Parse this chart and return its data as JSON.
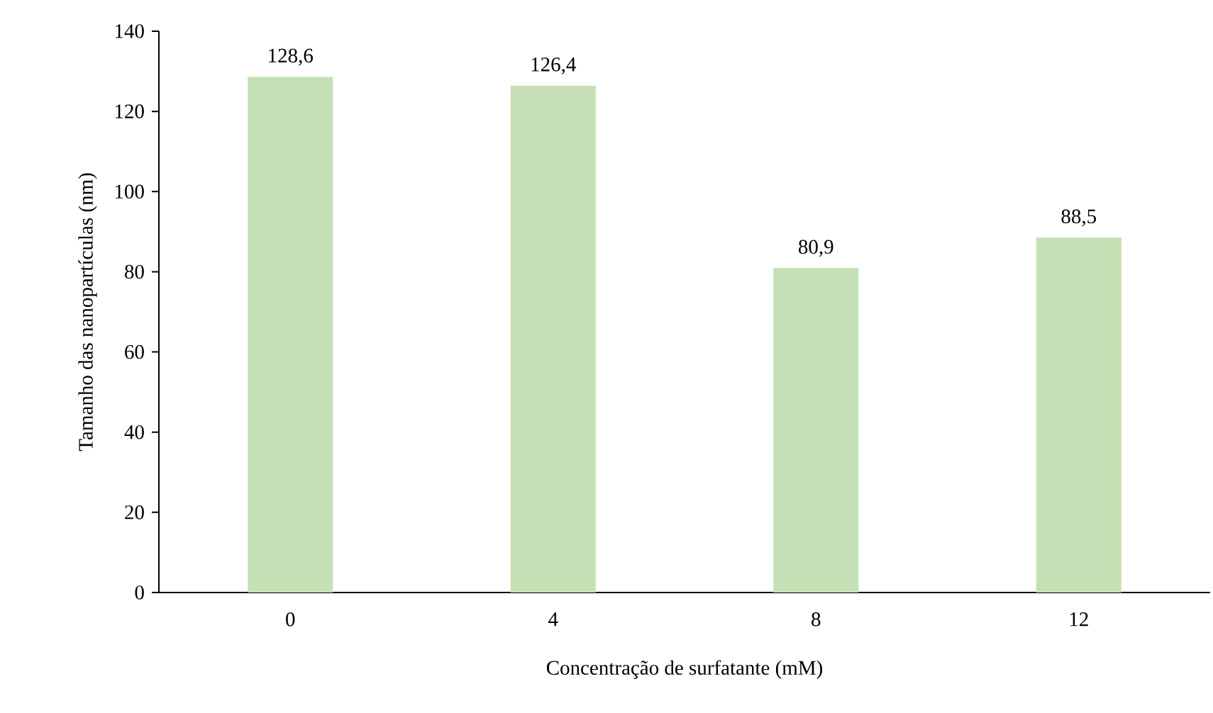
{
  "chart_data": {
    "type": "bar",
    "xlabel": "Concentração de surfatante (mM)",
    "ylabel": "Tamanho das nanopartículas (nm)",
    "categories": [
      "0",
      "4",
      "8",
      "12"
    ],
    "values": [
      128.6,
      126.4,
      80.9,
      88.5
    ],
    "value_labels": [
      "128,6",
      "126,4",
      "80,9",
      "88,5"
    ],
    "color": "#c5e0b4",
    "ylim": [
      0,
      140
    ],
    "yticks": [
      0,
      20,
      40,
      60,
      80,
      100,
      120,
      140
    ],
    "grid": false
  }
}
